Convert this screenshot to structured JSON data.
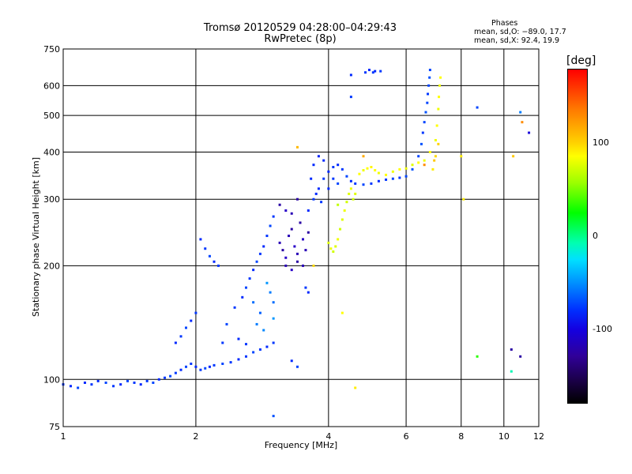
{
  "chart_data": {
    "type": "scatter",
    "title": "Tromsø 20120529 04:28:00–04:29:43",
    "subtitle": "RwPretec (8p)",
    "stats": {
      "header": "Phases",
      "line_o": "mean, sd,O: −89.0, 17.7",
      "line_x": "mean, sd,X:  92.4, 19.9"
    },
    "xlabel": "Frequency [MHz]",
    "ylabel": "Stationary phase Virtual Height [km]",
    "xscale": "log",
    "yscale": "log",
    "xlim": [
      1,
      12
    ],
    "ylim": [
      75,
      750
    ],
    "x_ticks": [
      1,
      2,
      4,
      6,
      8,
      10,
      12
    ],
    "y_ticks": [
      75,
      100,
      200,
      300,
      400,
      500,
      600,
      750
    ],
    "grid": true,
    "colorbar": {
      "label": "[deg]",
      "ticks": [
        100,
        0,
        -100
      ],
      "range": [
        -180,
        180
      ]
    },
    "series": [
      {
        "values": [
          [
            1.0,
            97,
            -95
          ],
          [
            1.04,
            96,
            -100
          ],
          [
            1.08,
            95,
            -90
          ],
          [
            1.12,
            98,
            -100
          ],
          [
            1.16,
            97,
            -95
          ],
          [
            1.2,
            99,
            -100
          ],
          [
            1.25,
            98,
            -90
          ],
          [
            1.3,
            96,
            -95
          ],
          [
            1.35,
            97,
            -100
          ],
          [
            1.4,
            99,
            -90
          ],
          [
            1.45,
            98,
            -95
          ],
          [
            1.5,
            97,
            -100
          ],
          [
            1.55,
            99,
            -95
          ],
          [
            1.6,
            98,
            -90
          ],
          [
            1.65,
            100,
            -100
          ],
          [
            1.7,
            101,
            -95
          ],
          [
            1.75,
            102,
            -90
          ],
          [
            1.8,
            104,
            -95
          ],
          [
            1.85,
            106,
            -100
          ],
          [
            1.9,
            108,
            -90
          ],
          [
            1.95,
            110,
            -95
          ],
          [
            2.0,
            108,
            -100
          ],
          [
            2.05,
            106,
            -95
          ],
          [
            2.1,
            107,
            -90
          ],
          [
            2.15,
            108,
            -100
          ],
          [
            2.2,
            109,
            -95
          ],
          [
            2.3,
            110,
            -90
          ],
          [
            2.4,
            111,
            -95
          ],
          [
            2.5,
            113,
            -100
          ],
          [
            2.6,
            115,
            -95
          ],
          [
            2.7,
            118,
            -90
          ],
          [
            2.8,
            120,
            -95
          ],
          [
            2.9,
            122,
            -100
          ],
          [
            3.0,
            125,
            -95
          ],
          [
            1.8,
            125,
            -100
          ],
          [
            1.85,
            130,
            -95
          ],
          [
            1.9,
            137,
            -90
          ],
          [
            1.95,
            143,
            -100
          ],
          [
            2.0,
            150,
            -95
          ],
          [
            2.05,
            235,
            -100
          ],
          [
            2.1,
            222,
            -95
          ],
          [
            2.15,
            212,
            -90
          ],
          [
            2.2,
            205,
            -100
          ],
          [
            2.25,
            200,
            -95
          ],
          [
            2.35,
            140,
            -90
          ],
          [
            2.45,
            155,
            -95
          ],
          [
            2.55,
            165,
            -100
          ],
          [
            2.6,
            175,
            -90
          ],
          [
            2.65,
            185,
            -95
          ],
          [
            2.7,
            195,
            -100
          ],
          [
            2.75,
            205,
            -90
          ],
          [
            2.8,
            215,
            -95
          ],
          [
            2.85,
            225,
            -100
          ],
          [
            2.9,
            240,
            -95
          ],
          [
            2.95,
            255,
            -90
          ],
          [
            3.0,
            270,
            -95
          ],
          [
            2.9,
            180,
            -60
          ],
          [
            2.95,
            170,
            -70
          ],
          [
            3.0,
            160,
            -75
          ],
          [
            2.8,
            150,
            -80
          ],
          [
            2.7,
            160,
            -75
          ],
          [
            2.75,
            140,
            -70
          ],
          [
            2.85,
            135,
            -65
          ],
          [
            3.0,
            145,
            -60
          ],
          [
            3.1,
            230,
            -135
          ],
          [
            3.15,
            220,
            -140
          ],
          [
            3.2,
            210,
            -130
          ],
          [
            3.25,
            240,
            -135
          ],
          [
            3.3,
            250,
            -140
          ],
          [
            3.35,
            225,
            -130
          ],
          [
            3.4,
            215,
            -135
          ],
          [
            3.45,
            260,
            -140
          ],
          [
            3.5,
            235,
            -130
          ],
          [
            3.55,
            220,
            -135
          ],
          [
            3.6,
            245,
            -140
          ],
          [
            3.2,
            200,
            -135
          ],
          [
            3.3,
            195,
            -130
          ],
          [
            3.4,
            205,
            -140
          ],
          [
            3.5,
            200,
            -135
          ],
          [
            3.1,
            290,
            -140
          ],
          [
            3.2,
            280,
            -130
          ],
          [
            3.3,
            275,
            -135
          ],
          [
            3.4,
            300,
            -140
          ],
          [
            3.6,
            280,
            -100
          ],
          [
            3.7,
            300,
            -95
          ],
          [
            3.8,
            320,
            -100
          ],
          [
            3.9,
            340,
            -95
          ],
          [
            4.0,
            355,
            -100
          ],
          [
            4.1,
            365,
            -95
          ],
          [
            4.2,
            370,
            -100
          ],
          [
            4.3,
            360,
            -95
          ],
          [
            4.4,
            345,
            -90
          ],
          [
            4.5,
            335,
            -100
          ],
          [
            4.6,
            330,
            -95
          ],
          [
            4.8,
            328,
            -90
          ],
          [
            5.0,
            330,
            -95
          ],
          [
            5.2,
            335,
            -100
          ],
          [
            5.4,
            338,
            -95
          ],
          [
            5.6,
            340,
            -90
          ],
          [
            5.8,
            342,
            -95
          ],
          [
            6.0,
            345,
            -90
          ],
          [
            6.2,
            360,
            -85
          ],
          [
            6.4,
            390,
            -90
          ],
          [
            6.5,
            420,
            -85
          ],
          [
            6.55,
            450,
            -95
          ],
          [
            6.6,
            480,
            -90
          ],
          [
            6.65,
            510,
            -85
          ],
          [
            6.7,
            540,
            -90
          ],
          [
            6.72,
            570,
            -95
          ],
          [
            6.75,
            600,
            -90
          ],
          [
            6.78,
            630,
            -85
          ],
          [
            6.8,
            660,
            -90
          ],
          [
            3.7,
            370,
            -100
          ],
          [
            3.8,
            390,
            -105
          ],
          [
            3.9,
            380,
            -100
          ],
          [
            3.75,
            310,
            -100
          ],
          [
            3.85,
            295,
            -95
          ],
          [
            4.0,
            320,
            -100
          ],
          [
            4.1,
            340,
            -95
          ],
          [
            4.2,
            330,
            -90
          ],
          [
            3.65,
            340,
            -100
          ],
          [
            4.5,
            640,
            -100
          ],
          [
            4.85,
            650,
            -95
          ],
          [
            4.95,
            660,
            -100
          ],
          [
            5.05,
            650,
            -95
          ],
          [
            5.1,
            655,
            -100
          ],
          [
            5.25,
            655,
            -95
          ],
          [
            4.5,
            560,
            -95
          ],
          [
            8.7,
            525,
            -90
          ],
          [
            10.9,
            510,
            -70
          ],
          [
            11.4,
            450,
            -120
          ],
          [
            10.4,
            120,
            -140
          ],
          [
            10.9,
            115,
            -140
          ],
          [
            3.6,
            170,
            -100
          ],
          [
            3.55,
            175,
            -95
          ],
          [
            3.0,
            80,
            -85
          ],
          [
            2.3,
            125,
            -95
          ],
          [
            2.5,
            128,
            -100
          ],
          [
            2.6,
            124,
            -95
          ],
          [
            3.3,
            112,
            -100
          ],
          [
            3.4,
            108,
            -90
          ],
          [
            4.0,
            230,
            90
          ],
          [
            4.05,
            222,
            95
          ],
          [
            4.1,
            218,
            85
          ],
          [
            4.15,
            225,
            90
          ],
          [
            4.2,
            235,
            95
          ],
          [
            4.25,
            250,
            85
          ],
          [
            4.3,
            265,
            90
          ],
          [
            4.35,
            280,
            95
          ],
          [
            4.4,
            295,
            85
          ],
          [
            4.45,
            310,
            90
          ],
          [
            4.5,
            320,
            95
          ],
          [
            4.55,
            300,
            85
          ],
          [
            4.6,
            310,
            90
          ],
          [
            4.7,
            350,
            100
          ],
          [
            4.8,
            358,
            95
          ],
          [
            4.9,
            362,
            100
          ],
          [
            5.0,
            365,
            105
          ],
          [
            5.1,
            358,
            100
          ],
          [
            5.2,
            352,
            95
          ],
          [
            5.4,
            348,
            100
          ],
          [
            5.6,
            355,
            95
          ],
          [
            5.8,
            360,
            100
          ],
          [
            6.0,
            362,
            95
          ],
          [
            6.2,
            370,
            90
          ],
          [
            6.4,
            375,
            100
          ],
          [
            6.6,
            380,
            95
          ],
          [
            6.8,
            400,
            100
          ],
          [
            7.0,
            430,
            95
          ],
          [
            7.05,
            470,
            100
          ],
          [
            7.1,
            520,
            95
          ],
          [
            7.12,
            560,
            100
          ],
          [
            7.15,
            600,
            95
          ],
          [
            7.18,
            630,
            100
          ],
          [
            6.9,
            360,
            110
          ],
          [
            7.0,
            390,
            120
          ],
          [
            6.95,
            380,
            130
          ],
          [
            7.1,
            420,
            125
          ],
          [
            6.6,
            370,
            150
          ],
          [
            4.8,
            390,
            140
          ],
          [
            8.0,
            390,
            110
          ],
          [
            8.1,
            300,
            110
          ],
          [
            8.7,
            115,
            40
          ],
          [
            10.4,
            105,
            -10
          ],
          [
            11.0,
            480,
            150
          ],
          [
            10.5,
            390,
            130
          ],
          [
            4.6,
            95,
            110
          ],
          [
            4.3,
            150,
            100
          ],
          [
            4.2,
            290,
            80
          ],
          [
            3.7,
            200,
            120
          ],
          [
            3.4,
            412,
            135
          ]
        ]
      }
    ]
  }
}
